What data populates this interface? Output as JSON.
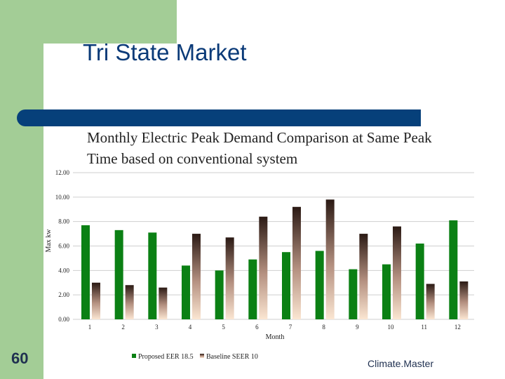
{
  "slide": {
    "title": "Tri State Market",
    "subtitle": "Monthly Electric Peak Demand Comparison at Same Peak Time based on conventional system",
    "slide_number": "60",
    "brand": "Climate.Master"
  },
  "colors": {
    "accent_green": "#a3cd96",
    "accent_blue": "#06407a",
    "series1": "#0b8014",
    "series2": "#3a2620"
  },
  "chart_data": {
    "type": "bar",
    "title": "Monthly Electric Peak Demand Comparison at Same Peak Time based on conventional system",
    "xlabel": "Month",
    "ylabel": "Max kw",
    "ylim": [
      0,
      12
    ],
    "yticks": [
      "0.00",
      "2.00",
      "4.00",
      "6.00",
      "8.00",
      "10.00",
      "12.00"
    ],
    "categories": [
      "1",
      "2",
      "3",
      "4",
      "5",
      "6",
      "7",
      "8",
      "9",
      "10",
      "11",
      "12"
    ],
    "series": [
      {
        "name": "Proposed EER 18.5",
        "values": [
          7.7,
          7.3,
          7.1,
          4.4,
          4.0,
          4.9,
          5.5,
          5.6,
          4.1,
          4.5,
          6.2,
          8.1
        ]
      },
      {
        "name": "Baseline SEER 10",
        "values": [
          3.0,
          2.8,
          2.6,
          7.0,
          6.7,
          8.4,
          9.2,
          9.8,
          7.0,
          7.6,
          2.9,
          3.1
        ]
      }
    ],
    "grid": true,
    "legend": "bottom"
  }
}
